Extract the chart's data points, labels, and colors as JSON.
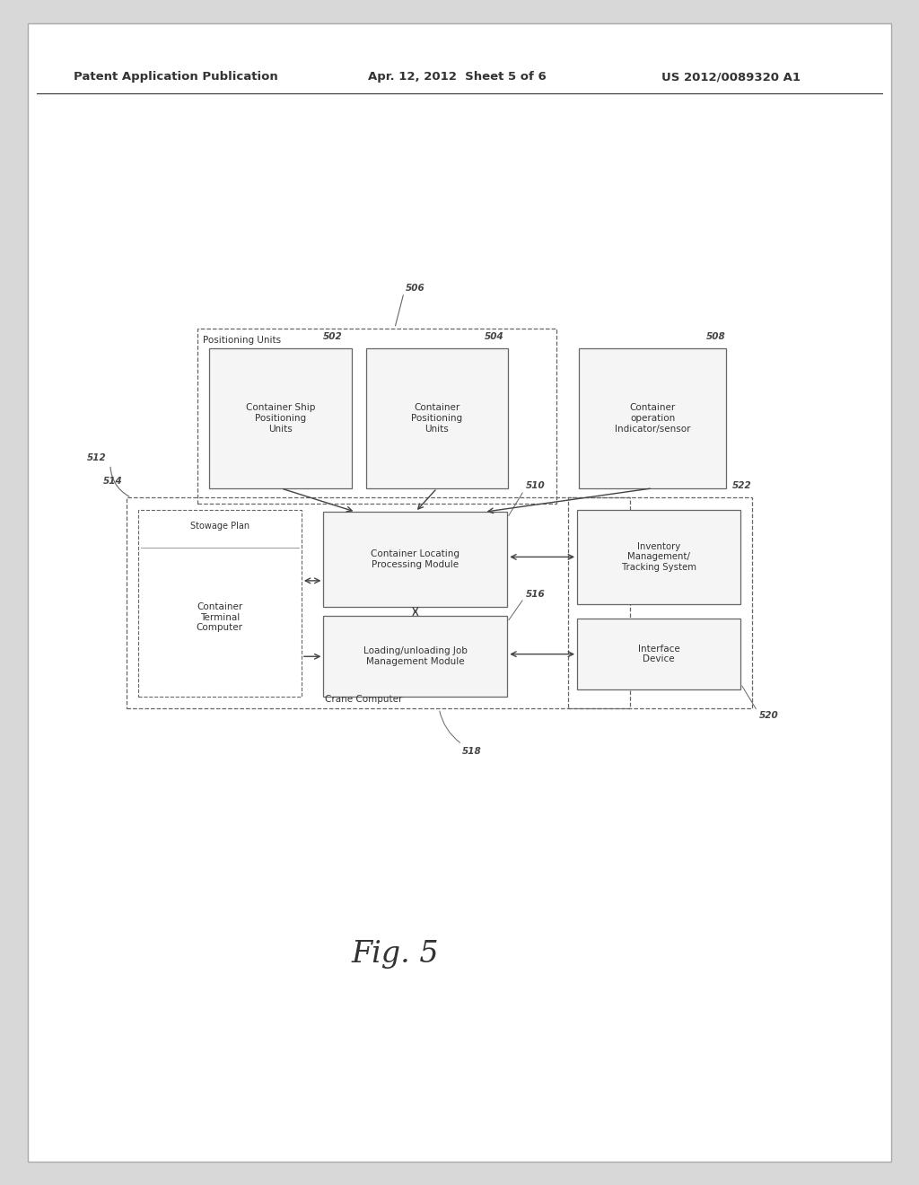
{
  "bg_color": "#d8d8d8",
  "page_bg": "#ffffff",
  "header_text": "Patent Application Publication",
  "header_date": "Apr. 12, 2012  Sheet 5 of 6",
  "header_patent": "US 2012/0089320 A1",
  "fig_label": "Fig. 5"
}
